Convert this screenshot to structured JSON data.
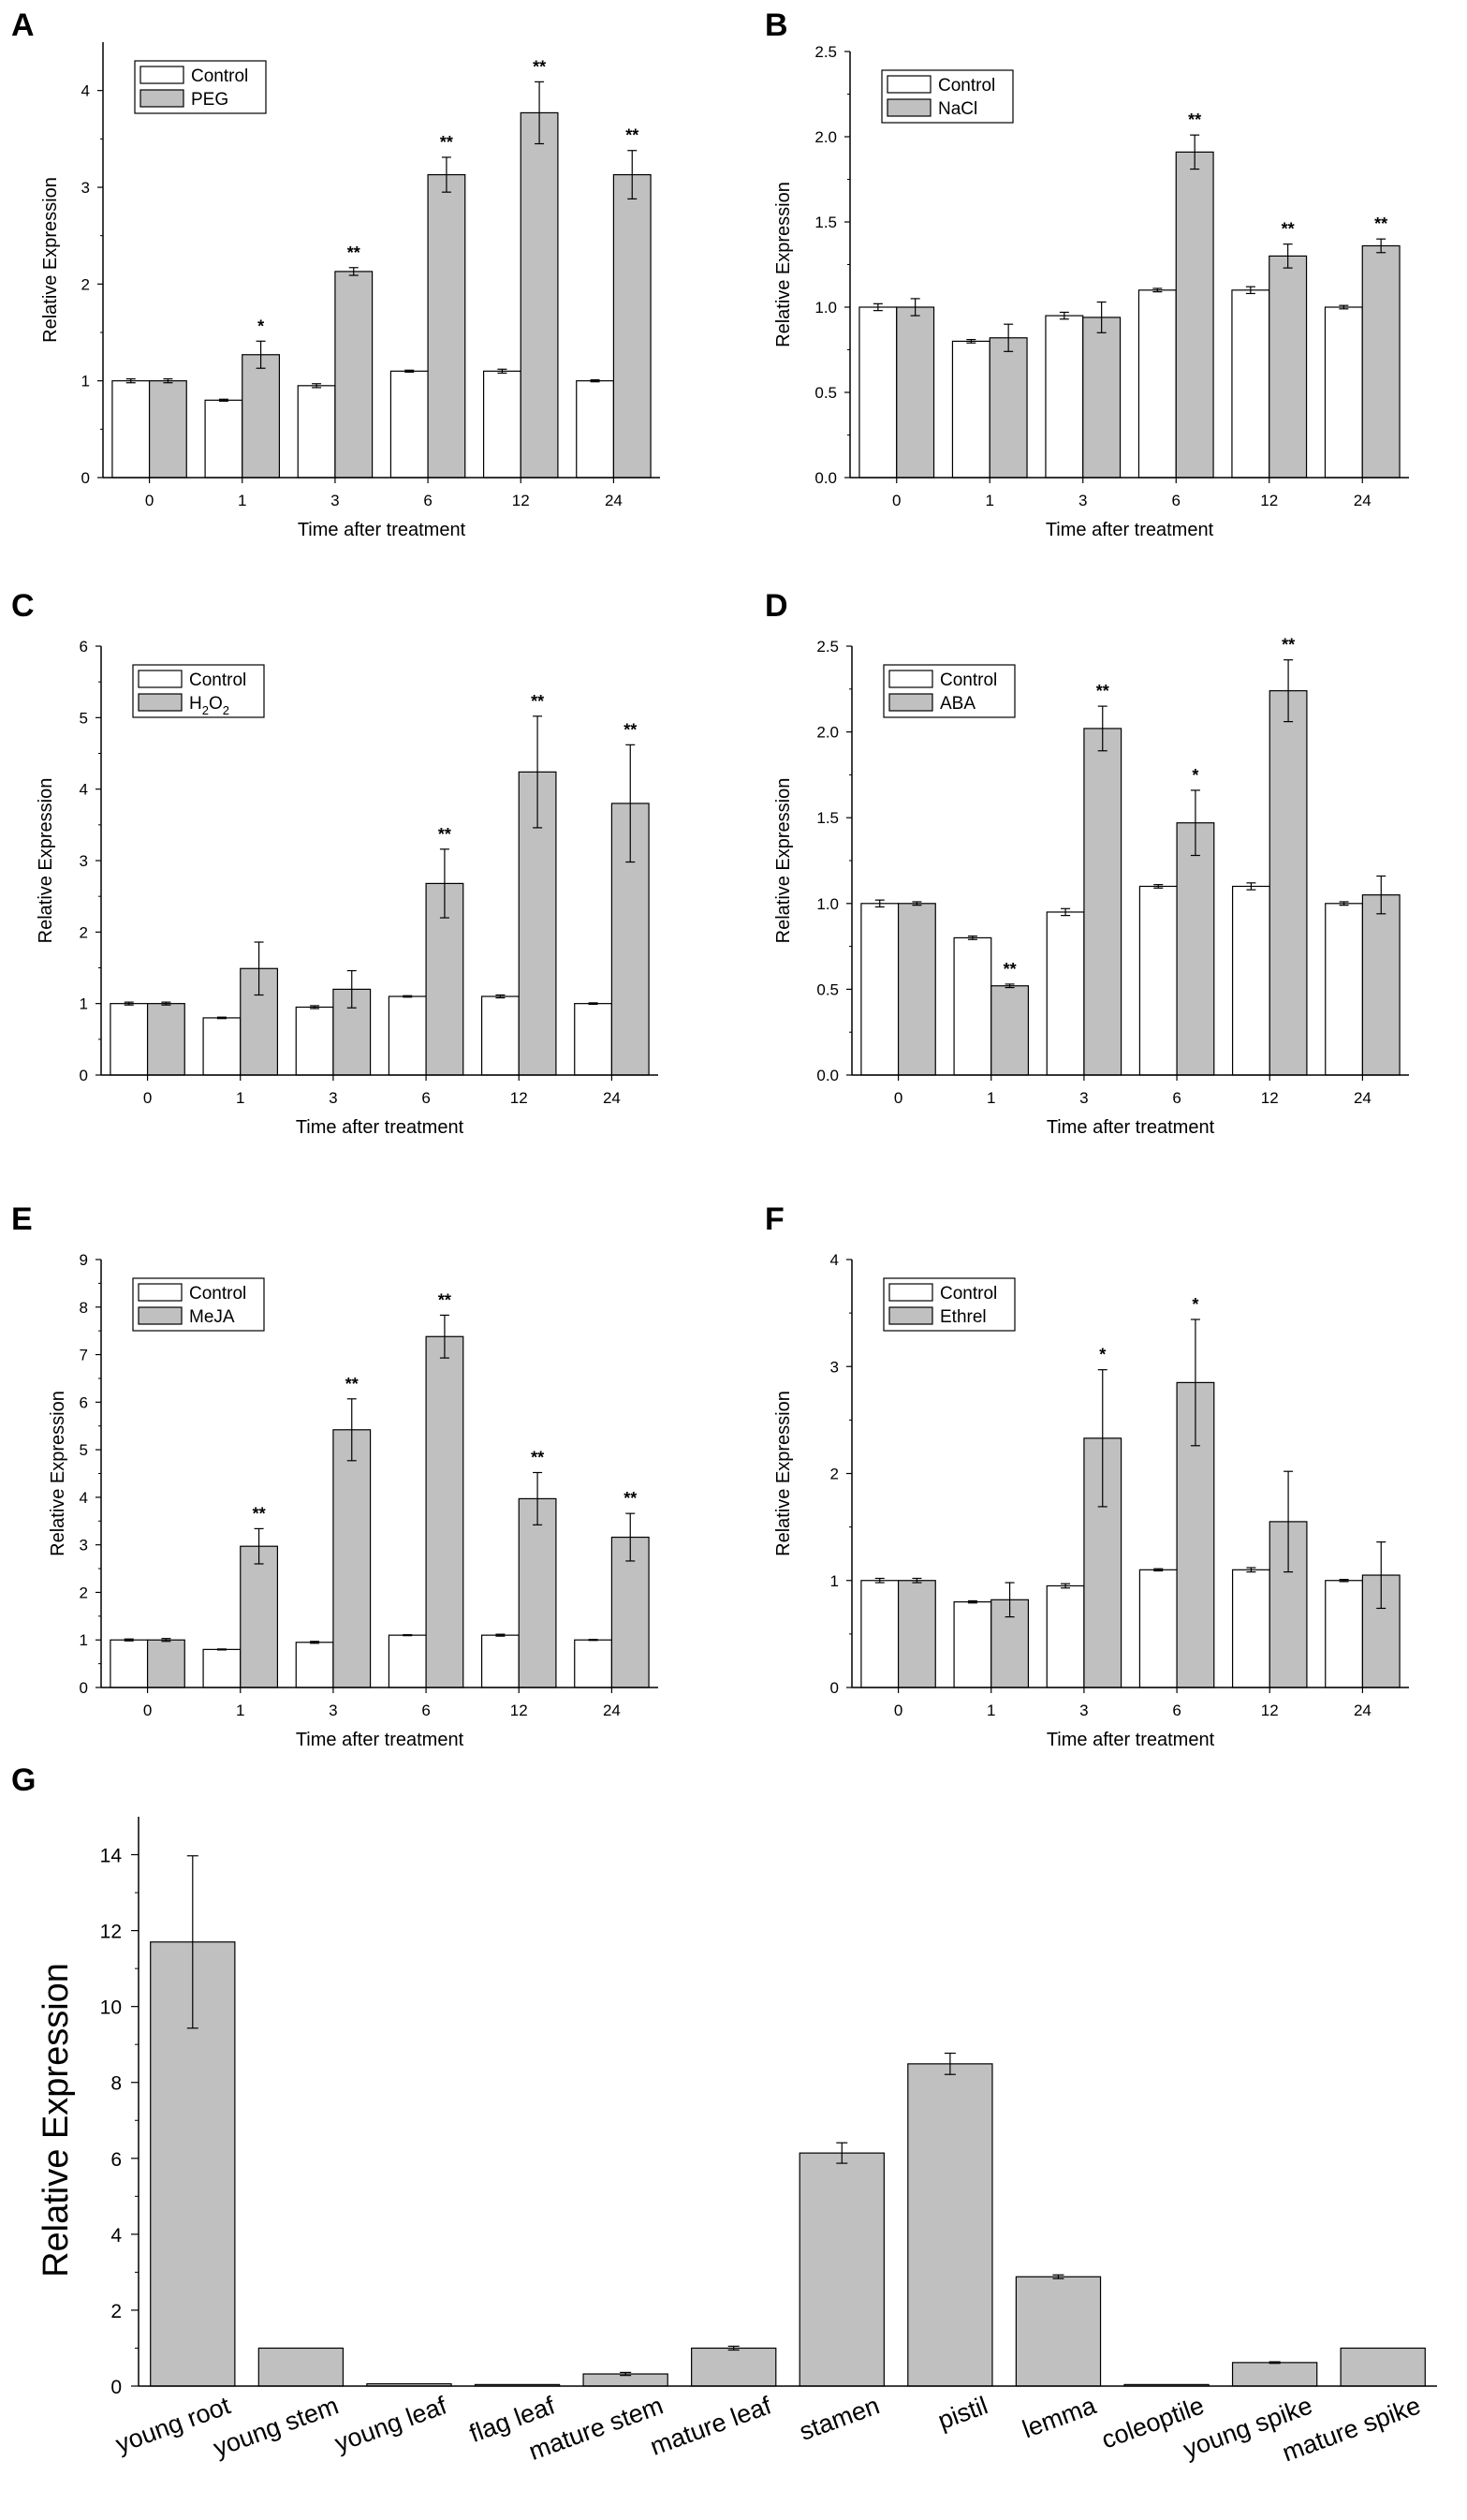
{
  "colors": {
    "control": "#ffffff",
    "treatment": "#c0c0c0",
    "axis": "#000000"
  },
  "chart_data": [
    {
      "panel": "A",
      "type": "bar",
      "categories": [
        "0",
        "1",
        "3",
        "6",
        "12",
        "24"
      ],
      "series": [
        {
          "name": "Control",
          "values": [
            1.0,
            0.8,
            0.95,
            1.1,
            1.1,
            1.0
          ],
          "errors": [
            0.02,
            0.01,
            0.02,
            0.01,
            0.02,
            0.01
          ]
        },
        {
          "name": "PEG",
          "values": [
            1.0,
            1.27,
            2.13,
            3.13,
            3.77,
            3.13
          ],
          "errors": [
            0.02,
            0.14,
            0.04,
            0.18,
            0.32,
            0.25
          ]
        }
      ],
      "sig": [
        "",
        "*",
        "**",
        "**",
        "**",
        "**"
      ],
      "ylim": [
        0,
        4.5
      ],
      "yticks": [
        "0",
        "1",
        "2",
        "3",
        "4"
      ],
      "ytick_values": [
        0,
        1,
        2,
        3,
        4
      ],
      "xlabel": "Time after treatment",
      "ylabel": "Relative Expression"
    },
    {
      "panel": "B",
      "type": "bar",
      "categories": [
        "0",
        "1",
        "3",
        "6",
        "12",
        "24"
      ],
      "series": [
        {
          "name": "Control",
          "values": [
            1.0,
            0.8,
            0.95,
            1.1,
            1.1,
            1.0
          ],
          "errors": [
            0.02,
            0.01,
            0.02,
            0.01,
            0.02,
            0.01
          ]
        },
        {
          "name": "NaCl",
          "values": [
            1.0,
            0.82,
            0.94,
            1.91,
            1.3,
            1.36
          ],
          "errors": [
            0.05,
            0.08,
            0.09,
            0.1,
            0.07,
            0.04
          ]
        }
      ],
      "sig": [
        "",
        "",
        "",
        "**",
        "**",
        "**"
      ],
      "ylim": [
        0,
        2.5
      ],
      "yticks": [
        "0.0",
        "0.5",
        "1.0",
        "1.5",
        "2.0",
        "2.5"
      ],
      "ytick_values": [
        0,
        0.5,
        1.0,
        1.5,
        2.0,
        2.5
      ],
      "xlabel": "Time after treatment",
      "ylabel": "Relative Expression"
    },
    {
      "panel": "C",
      "type": "bar",
      "categories": [
        "0",
        "1",
        "3",
        "6",
        "12",
        "24"
      ],
      "series": [
        {
          "name": "Control",
          "values": [
            1.0,
            0.8,
            0.95,
            1.1,
            1.1,
            1.0
          ],
          "errors": [
            0.02,
            0.01,
            0.02,
            0.01,
            0.02,
            0.01
          ]
        },
        {
          "name": "H2O2",
          "values": [
            1.0,
            1.49,
            1.2,
            2.68,
            4.24,
            3.8
          ],
          "errors": [
            0.02,
            0.37,
            0.26,
            0.48,
            0.78,
            0.82
          ]
        }
      ],
      "sig": [
        "",
        "",
        "",
        "**",
        "**",
        "**"
      ],
      "ylim": [
        0,
        6
      ],
      "yticks": [
        "0",
        "1",
        "2",
        "3",
        "4",
        "5",
        "6"
      ],
      "ytick_values": [
        0,
        1,
        2,
        3,
        4,
        5,
        6
      ],
      "xlabel": "Time after treatment",
      "ylabel": "Relative Expression",
      "legend_treatment": {
        "base": "H",
        "sub1": "2",
        "mid": "O",
        "sub2": "2"
      }
    },
    {
      "panel": "D",
      "type": "bar",
      "categories": [
        "0",
        "1",
        "3",
        "6",
        "12",
        "24"
      ],
      "series": [
        {
          "name": "Control",
          "values": [
            1.0,
            0.8,
            0.95,
            1.1,
            1.1,
            1.0
          ],
          "errors": [
            0.02,
            0.01,
            0.02,
            0.01,
            0.02,
            0.01
          ]
        },
        {
          "name": "ABA",
          "values": [
            1.0,
            0.52,
            2.02,
            1.47,
            2.24,
            1.05
          ],
          "errors": [
            0.01,
            0.01,
            0.13,
            0.19,
            0.18,
            0.11
          ]
        }
      ],
      "sig": [
        "",
        "**",
        "**",
        "*",
        "**",
        ""
      ],
      "ylim": [
        0,
        2.5
      ],
      "yticks": [
        "0.0",
        "0.5",
        "1.0",
        "1.5",
        "2.0",
        "2.5"
      ],
      "ytick_values": [
        0,
        0.5,
        1.0,
        1.5,
        2.0,
        2.5
      ],
      "xlabel": "Time after treatment",
      "ylabel": "Relative Expression"
    },
    {
      "panel": "E",
      "type": "bar",
      "categories": [
        "0",
        "1",
        "3",
        "6",
        "12",
        "24"
      ],
      "series": [
        {
          "name": "Control",
          "values": [
            1.0,
            0.8,
            0.95,
            1.1,
            1.1,
            1.0
          ],
          "errors": [
            0.02,
            0.01,
            0.02,
            0.01,
            0.02,
            0.01
          ]
        },
        {
          "name": "MeJA",
          "values": [
            1.0,
            2.97,
            5.42,
            7.38,
            3.97,
            3.16
          ],
          "errors": [
            0.03,
            0.37,
            0.65,
            0.45,
            0.55,
            0.5
          ]
        }
      ],
      "sig": [
        "",
        "**",
        "**",
        "**",
        "**",
        "**"
      ],
      "ylim": [
        0,
        9
      ],
      "yticks": [
        "0",
        "1",
        "2",
        "3",
        "4",
        "5",
        "6",
        "7",
        "8",
        "9"
      ],
      "ytick_values": [
        0,
        1,
        2,
        3,
        4,
        5,
        6,
        7,
        8,
        9
      ],
      "xlabel": "Time after treatment",
      "ylabel": "Relative Expression"
    },
    {
      "panel": "F",
      "type": "bar",
      "categories": [
        "0",
        "1",
        "3",
        "6",
        "12",
        "24"
      ],
      "series": [
        {
          "name": "Control",
          "values": [
            1.0,
            0.8,
            0.95,
            1.1,
            1.1,
            1.0
          ],
          "errors": [
            0.02,
            0.01,
            0.02,
            0.01,
            0.02,
            0.01
          ]
        },
        {
          "name": "Ethrel",
          "values": [
            1.0,
            0.82,
            2.33,
            2.85,
            1.55,
            1.05
          ],
          "errors": [
            0.02,
            0.16,
            0.64,
            0.59,
            0.47,
            0.31
          ]
        }
      ],
      "sig": [
        "",
        "",
        "*",
        "*",
        "",
        ""
      ],
      "ylim": [
        0,
        4
      ],
      "yticks": [
        "0",
        "1",
        "2",
        "3",
        "4"
      ],
      "ytick_values": [
        0,
        1,
        2,
        3,
        4
      ],
      "xlabel": "Time after treatment",
      "ylabel": "Relative Expression"
    },
    {
      "panel": "G",
      "type": "bar",
      "categories": [
        "young root",
        "young stem",
        "young leaf",
        "flag leaf",
        "mature stem",
        "mature leaf",
        "stamen",
        "pistil",
        "lemma",
        "coleoptile",
        "young spike",
        "mature spike"
      ],
      "values": [
        11.7,
        1.0,
        0.06,
        0.04,
        0.32,
        1.0,
        6.14,
        8.49,
        2.88,
        0.04,
        0.62,
        1.0
      ],
      "errors": [
        2.27,
        0.0,
        0.0,
        0.0,
        0.04,
        0.05,
        0.27,
        0.28,
        0.05,
        0.0,
        0.02,
        0.0
      ],
      "ylim": [
        0,
        15
      ],
      "yticks": [
        "0",
        "2",
        "4",
        "6",
        "8",
        "10",
        "12",
        "14"
      ],
      "ytick_values": [
        0,
        2,
        4,
        6,
        8,
        10,
        12,
        14
      ],
      "xlabel": "",
      "ylabel": "Relative Expression"
    }
  ]
}
